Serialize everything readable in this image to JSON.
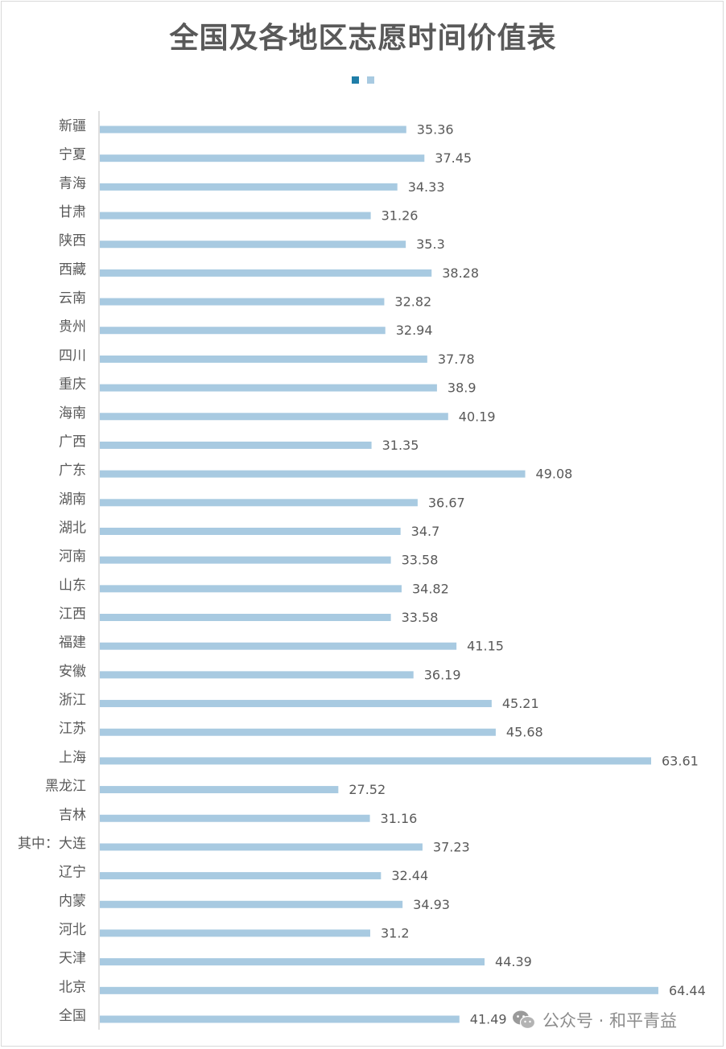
{
  "chart_data": {
    "type": "bar",
    "orientation": "horizontal",
    "title": "全国及各地区志愿时间价值表",
    "categories": [
      "新疆",
      "宁夏",
      "青海",
      "甘肃",
      "陕西",
      "西藏",
      "云南",
      "贵州",
      "四川",
      "重庆",
      "海南",
      "广西",
      "广东",
      "湖南",
      "湖北",
      "河南",
      "山东",
      "江西",
      "福建",
      "安徽",
      "浙江",
      "江苏",
      "上海",
      "黑龙江",
      "吉林",
      "其中：大连",
      "辽宁",
      "内蒙",
      "河北",
      "天津",
      "北京",
      "全国"
    ],
    "values": [
      35.36,
      37.45,
      34.33,
      31.26,
      35.3,
      38.28,
      32.82,
      32.94,
      37.78,
      38.9,
      40.19,
      31.35,
      49.08,
      36.67,
      34.7,
      33.58,
      34.82,
      33.58,
      41.15,
      36.19,
      45.21,
      45.68,
      63.61,
      27.52,
      31.16,
      37.23,
      32.44,
      34.93,
      31.2,
      44.39,
      64.44,
      41.49
    ],
    "value_labels": [
      "35.36",
      "37.45",
      "34.33",
      "31.26",
      "35.3",
      "38.28",
      "32.82",
      "32.94",
      "37.78",
      "38.9",
      "40.19",
      "31.35",
      "49.08",
      "36.67",
      "34.7",
      "33.58",
      "34.82",
      "33.58",
      "41.15",
      "36.19",
      "45.21",
      "45.68",
      "63.61",
      "27.52",
      "31.16",
      "37.23",
      "32.44",
      "34.93",
      "31.2",
      "44.39",
      "64.44",
      "41.49"
    ],
    "xlim": [
      0,
      70
    ],
    "grid": false,
    "legend_position": "top",
    "bar_color": "#a8cae1",
    "legend_colors": [
      "#1f7ea8",
      "#a8cae1"
    ],
    "axis_color": "#bfbfbf"
  },
  "watermark": {
    "icon": "wechat-icon",
    "text": "公众号 · 和平青益"
  }
}
